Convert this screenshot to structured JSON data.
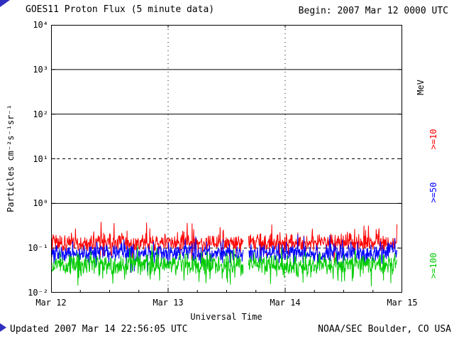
{
  "header": {
    "title": "GOES11 Proton Flux (5 minute data)",
    "begin": "Begin: 2007 Mar 12 0000 UTC"
  },
  "footer": {
    "updated": "Updated 2007 Mar 14 22:56:05 UTC",
    "credit": "NOAA/SEC Boulder, CO USA"
  },
  "right_axis": {
    "unit": "MeV",
    "unit_color": "#000000",
    "labels": [
      {
        "text": ">=10",
        "color": "#ff0000"
      },
      {
        "text": ">=50",
        "color": "#0000ff"
      },
      {
        "text": ">=100",
        "color": "#00cc00"
      }
    ]
  },
  "chart_data": {
    "type": "line",
    "title": "GOES11 Proton Flux (5 minute data)",
    "xlabel": "Universal Time",
    "ylabel": "Particles cm⁻²s⁻¹sr⁻¹",
    "yscale": "log",
    "ylim": [
      0.01,
      10000
    ],
    "y_decades": [
      4,
      3,
      2,
      1,
      0,
      -1,
      -2
    ],
    "y_tick_labels": [
      "10⁴",
      "10³",
      "10²",
      "10¹",
      "10⁰",
      "10⁻¹",
      "10⁻²"
    ],
    "x_start": "2007 Mar 12 0000 UTC",
    "x_end": "2007 Mar 15 0000 UTC",
    "x_tick_labels": [
      "Mar 12",
      "Mar 13",
      "Mar 14",
      "Mar 15"
    ],
    "x_tick_days": [
      0,
      1,
      2,
      3
    ],
    "cadence_minutes": 5,
    "data_end_day": 2.956,
    "gap_days": [
      [
        1.645,
        1.685
      ]
    ],
    "gridlines": {
      "solid_at": [
        1000,
        100,
        1
      ],
      "dashed_at": [
        10,
        0.1
      ],
      "vertical_dotted_days": [
        1,
        2
      ]
    },
    "series": [
      {
        "name": ">=10 MeV",
        "color": "#ff0000",
        "baseline": 0.13,
        "noise_sigma_log10": 0.1,
        "spike_prob": 0.1,
        "spike_extra_log10": 0.38,
        "spike_up_bias": 0.75,
        "seed": 101
      },
      {
        "name": ">=50 MeV",
        "color": "#0000ff",
        "baseline": 0.078,
        "noise_sigma_log10": 0.11,
        "spike_prob": 0.08,
        "spike_extra_log10": 0.3,
        "spike_up_bias": 0.5,
        "seed": 202
      },
      {
        "name": ">=100 MeV",
        "color": "#00cc00",
        "baseline": 0.042,
        "noise_sigma_log10": 0.13,
        "spike_prob": 0.1,
        "spike_extra_log10": 0.32,
        "spike_up_bias": 0.3,
        "seed": 303
      }
    ]
  }
}
